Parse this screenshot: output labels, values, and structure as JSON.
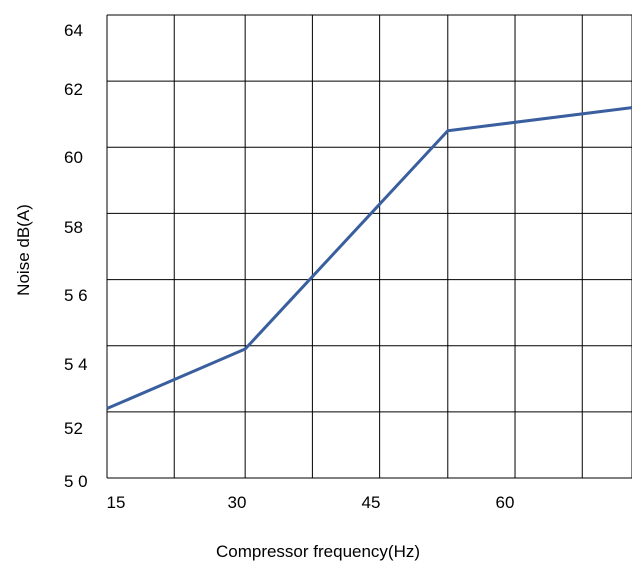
{
  "chart_data": {
    "type": "line",
    "title": "",
    "xlabel": "Compressor frequency(Hz)",
    "ylabel": "Noise dB(A)",
    "xlim": [
      15,
      72
    ],
    "ylim": [
      50,
      64
    ],
    "x_ticks": [
      {
        "value": 15,
        "label": "15"
      },
      {
        "value": 30,
        "label": "30"
      },
      {
        "value": 45,
        "label": "45"
      },
      {
        "value": 60,
        "label": "60"
      }
    ],
    "y_ticks": [
      {
        "value": 50,
        "label": "5 0"
      },
      {
        "value": 52,
        "label": "52"
      },
      {
        "value": 54,
        "label": "5 4"
      },
      {
        "value": 56,
        "label": "5 6"
      },
      {
        "value": 58,
        "label": "58"
      },
      {
        "value": 60,
        "label": "60"
      },
      {
        "value": 62,
        "label": "62"
      },
      {
        "value": 64,
        "label": "64"
      }
    ],
    "x_gridlines": [
      15,
      22.3,
      30,
      37.3,
      44.6,
      52,
      59.3,
      66.6,
      72
    ],
    "grid": true,
    "series": [
      {
        "color": "#3a5f9f",
        "x": [
          15,
          30,
          52,
          72
        ],
        "y": [
          52.1,
          53.9,
          60.5,
          61.2
        ]
      }
    ]
  }
}
